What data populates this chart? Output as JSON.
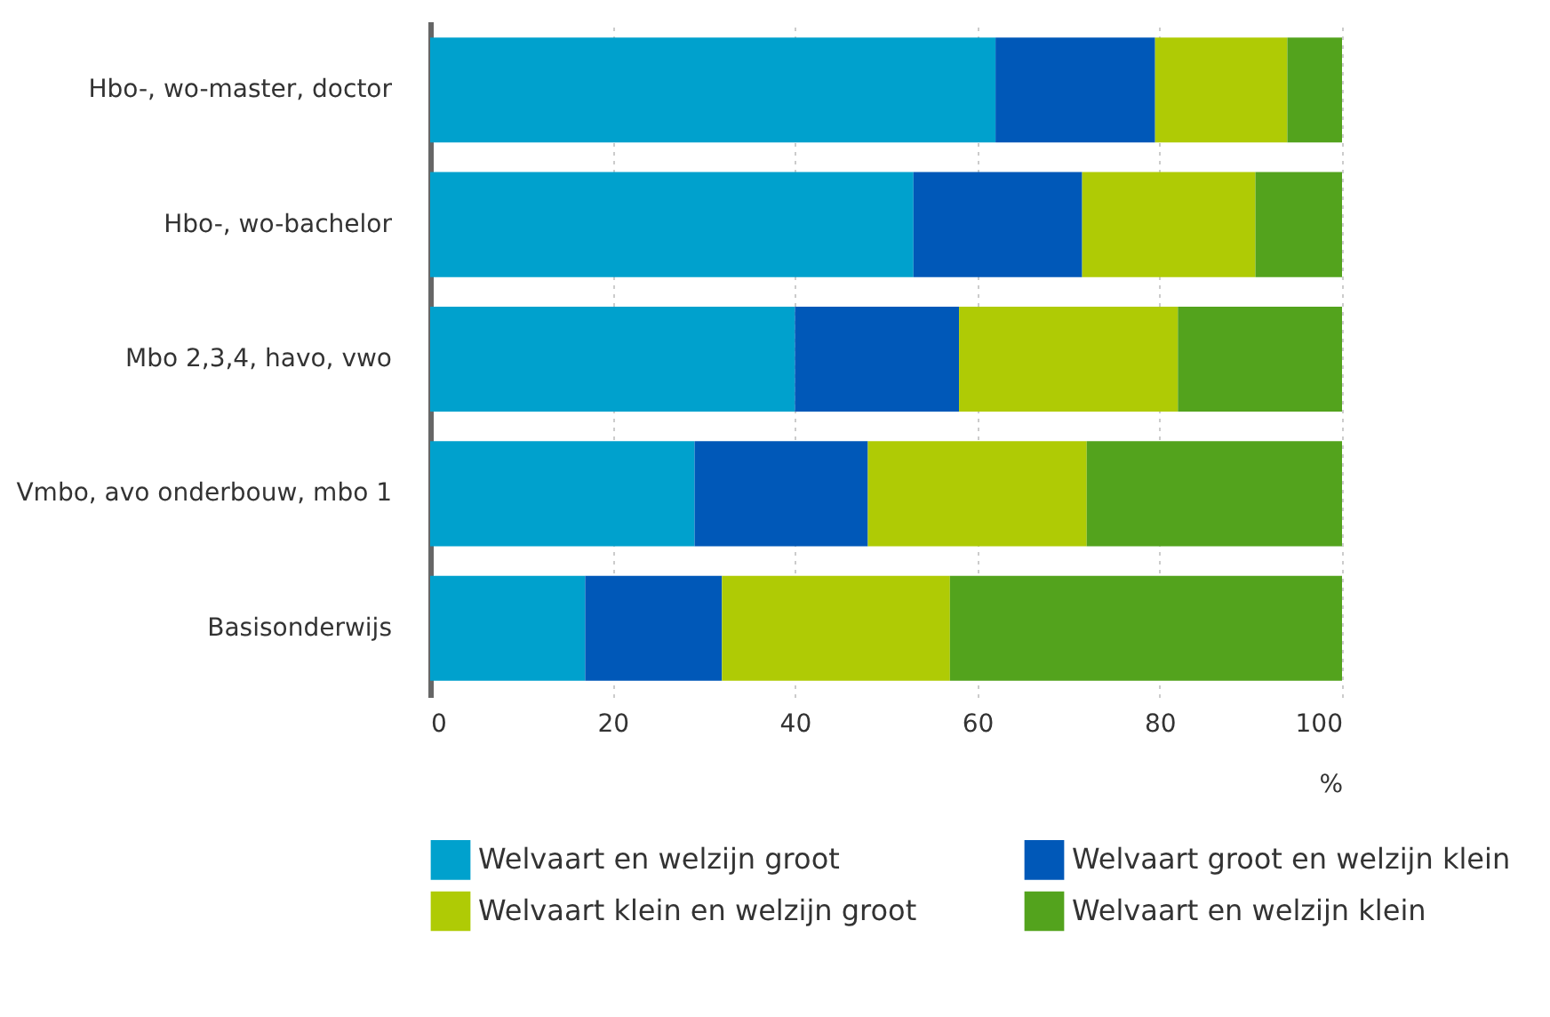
{
  "chart_data": {
    "type": "bar",
    "orientation": "horizontal",
    "stacked": true,
    "xlabel": "%",
    "categories": [
      "Hbo-, wo-master, doctor",
      "Hbo-, wo-bachelor",
      "Mbo 2,3,4, havo, vwo",
      "Vmbo, avo onderbouw, mbo 1",
      "Basisonderwijs"
    ],
    "series": [
      {
        "name": "Welvaart en welzijn groot",
        "color": "#00a1cd",
        "values": [
          62,
          53,
          40,
          29,
          17
        ]
      },
      {
        "name": "Welvaart groot en welzijn klein",
        "color": "#0058b8",
        "values": [
          17.5,
          18.5,
          18,
          19,
          15
        ]
      },
      {
        "name": "Welvaart klein en welzijn groot",
        "color": "#afcb05",
        "values": [
          14.5,
          19,
          24,
          24,
          25
        ]
      },
      {
        "name": "Welvaart en welzijn klein",
        "color": "#53a31d",
        "values": [
          6,
          9.5,
          18,
          28,
          43
        ]
      }
    ],
    "xlim": [
      0,
      100
    ],
    "xticks": [
      0,
      20,
      40,
      60,
      80,
      100
    ],
    "grid": "x",
    "legend": "bottom"
  }
}
